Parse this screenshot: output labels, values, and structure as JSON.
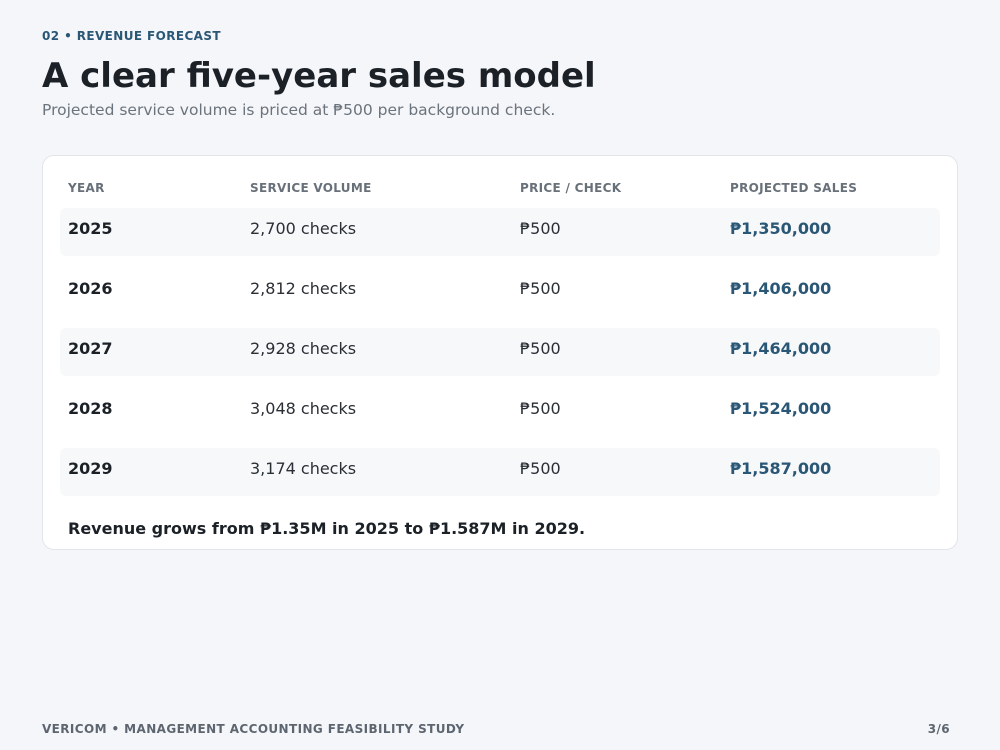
{
  "header": {
    "eyebrow": "02 • REVENUE FORECAST",
    "title": "A clear five-year sales model",
    "subtitle": "Projected service volume is priced at ₱500 per background check."
  },
  "table": {
    "columns": [
      "YEAR",
      "SERVICE VOLUME",
      "PRICE / CHECK",
      "PROJECTED SALES"
    ],
    "rows": [
      [
        "2025",
        "2,700 checks",
        "₱500",
        "₱1,350,000"
      ],
      [
        "2026",
        "2,812 checks",
        "₱500",
        "₱1,406,000"
      ],
      [
        "2027",
        "2,928 checks",
        "₱500",
        "₱1,464,000"
      ],
      [
        "2028",
        "3,048 checks",
        "₱500",
        "₱1,524,000"
      ],
      [
        "2029",
        "3,174 checks",
        "₱500",
        "₱1,587,000"
      ]
    ],
    "note": "Revenue grows from ₱1.35M in 2025 to ₱1.587M in 2029."
  },
  "footer": {
    "left": "VERICOM • MANAGEMENT ACCOUNTING FEASIBILITY STUDY",
    "right": "3/6"
  }
}
